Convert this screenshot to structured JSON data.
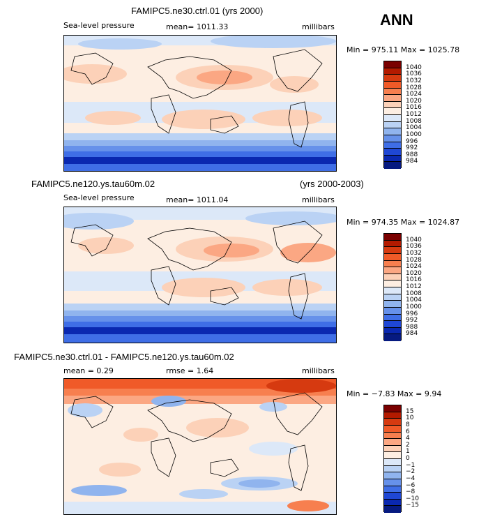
{
  "season": "ANN",
  "panels": [
    {
      "title": "FAMIPC5.ne30.ctrl.01 (yrs 2000)",
      "title_extra": "",
      "field_label": "Sea-level pressure",
      "stat1": "mean= 1011.33",
      "stat2": "",
      "units": "millibars",
      "minmax": "Min = 975.11  Max = 1025.78"
    },
    {
      "title": "FAMIPC5.ne120.ys.tau60m.02",
      "title_extra": "(yrs 2000-2003)",
      "field_label": "Sea-level pressure",
      "stat1": "mean= 1011.04",
      "stat2": "",
      "units": "millibars",
      "minmax": "Min = 974.35  Max = 1024.87"
    },
    {
      "title": "FAMIPC5.ne30.ctrl.01 - FAMIPC5.ne120.ys.tau60m.02",
      "title_extra": "",
      "field_label": "",
      "stat1": "mean =    0.29",
      "stat2": "rmse =    1.64",
      "units": "millibars",
      "minmax": "Min =  −7.83 Max =    9.94"
    }
  ],
  "colorbars": [
    {
      "levels": [
        "1040",
        "1036",
        "1032",
        "1028",
        "1024",
        "1020",
        "1016",
        "1012",
        "1008",
        "1004",
        "1000",
        "996",
        "992",
        "988",
        "984"
      ],
      "colors": [
        "#7a0000",
        "#b31a00",
        "#d63a10",
        "#f05a28",
        "#f77f4f",
        "#fba783",
        "#fcd1b8",
        "#fdeee2",
        "#dce8f8",
        "#bad2f4",
        "#90b4ee",
        "#6691ea",
        "#3f6ee6",
        "#1f47d4",
        "#0a28b0",
        "#061a80"
      ]
    },
    {
      "levels": [
        "1040",
        "1036",
        "1032",
        "1028",
        "1024",
        "1020",
        "1016",
        "1012",
        "1008",
        "1004",
        "1000",
        "996",
        "992",
        "988",
        "984"
      ],
      "colors": [
        "#7a0000",
        "#b31a00",
        "#d63a10",
        "#f05a28",
        "#f77f4f",
        "#fba783",
        "#fcd1b8",
        "#fdeee2",
        "#dce8f8",
        "#bad2f4",
        "#90b4ee",
        "#6691ea",
        "#3f6ee6",
        "#1f47d4",
        "#0a28b0",
        "#061a80"
      ]
    },
    {
      "levels": [
        "15",
        "10",
        "8",
        "6",
        "4",
        "2",
        "1",
        "0",
        "−1",
        "−2",
        "−4",
        "−6",
        "−8",
        "−10",
        "−15"
      ],
      "colors": [
        "#7a0000",
        "#b31a00",
        "#d63a10",
        "#f05a28",
        "#f77f4f",
        "#fba783",
        "#fcd1b8",
        "#fdeee2",
        "#dce8f8",
        "#bad2f4",
        "#90b4ee",
        "#6691ea",
        "#3f6ee6",
        "#1f47d4",
        "#0a28b0",
        "#061a80"
      ]
    }
  ],
  "chart_data": [
    {
      "type": "heatmap",
      "title": "FAMIPC5.ne30.ctrl.01 (yrs 2000)",
      "variable": "Sea-level pressure",
      "units": "millibars",
      "mean": 1011.33,
      "min": 975.11,
      "max": 1025.78,
      "contour_levels": [
        984,
        988,
        992,
        996,
        1000,
        1004,
        1008,
        1012,
        1016,
        1020,
        1024,
        1028,
        1032,
        1036,
        1040
      ]
    },
    {
      "type": "heatmap",
      "title": "FAMIPC5.ne120.ys.tau60m.02 (yrs 2000-2003)",
      "variable": "Sea-level pressure",
      "units": "millibars",
      "mean": 1011.04,
      "min": 974.35,
      "max": 1024.87,
      "contour_levels": [
        984,
        988,
        992,
        996,
        1000,
        1004,
        1008,
        1012,
        1016,
        1020,
        1024,
        1028,
        1032,
        1036,
        1040
      ]
    },
    {
      "type": "heatmap",
      "title": "FAMIPC5.ne30.ctrl.01 - FAMIPC5.ne120.ys.tau60m.02",
      "units": "millibars",
      "mean": 0.29,
      "rmse": 1.64,
      "min": -7.83,
      "max": 9.94,
      "contour_levels": [
        -15,
        -10,
        -8,
        -6,
        -4,
        -2,
        -1,
        0,
        1,
        2,
        4,
        6,
        8,
        10,
        15
      ]
    }
  ]
}
